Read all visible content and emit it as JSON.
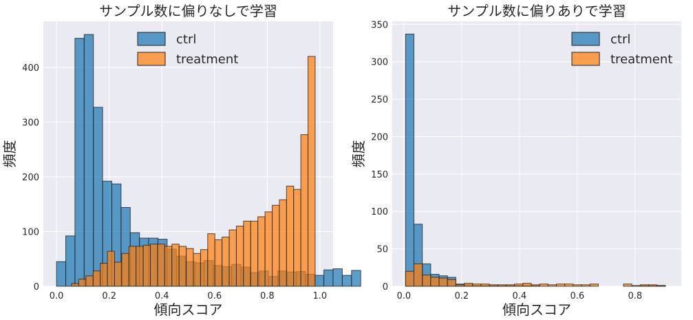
{
  "chart_data": [
    {
      "type": "histogram",
      "title": "サンプル数に偏りなしで学習",
      "xlabel": "傾向スコア",
      "ylabel": "頻度",
      "xlim": [
        -0.05,
        1.05
      ],
      "ylim": [
        0,
        484
      ],
      "xticks": [
        0.0,
        0.2,
        0.4,
        0.6,
        0.8,
        1.0
      ],
      "xtick_labels": [
        "0.0",
        "0.2",
        "0.4",
        "0.6",
        "0.8",
        "1.0"
      ],
      "yticks": [
        0,
        100,
        200,
        300,
        400
      ],
      "grid": true,
      "legend_position": "upper center",
      "series": [
        {
          "name": "ctrl",
          "color": "#1f77b4",
          "bin_start": 0.0,
          "bin_width": 0.035,
          "values": [
            45,
            92,
            453,
            460,
            327,
            192,
            187,
            144,
            98,
            88,
            88,
            86,
            68,
            55,
            45,
            43,
            47,
            38,
            36,
            40,
            35,
            25,
            28,
            18,
            28,
            26,
            27,
            22,
            20,
            30,
            32,
            20,
            29
          ]
        },
        {
          "name": "treatment",
          "color": "#ff7f0e",
          "bin_start": 0.0572,
          "bin_width": 0.0272,
          "values": [
            5,
            13,
            19,
            28,
            42,
            64,
            44,
            60,
            73,
            73,
            75,
            77,
            77,
            73,
            77,
            73,
            69,
            60,
            67,
            96,
            85,
            90,
            103,
            110,
            119,
            119,
            127,
            136,
            148,
            158,
            183,
            177,
            277,
            420
          ]
        }
      ]
    },
    {
      "type": "histogram",
      "title": "サンプル数に偏りありで学習",
      "xlabel": "傾向スコア",
      "ylabel": "頻度",
      "xlim": [
        -0.04,
        0.96
      ],
      "ylim": [
        0,
        354
      ],
      "xticks": [
        0.0,
        0.2,
        0.4,
        0.6,
        0.8
      ],
      "xtick_labels": [
        "0.0",
        "0.2",
        "0.4",
        "0.6",
        "0.8"
      ],
      "yticks": [
        0,
        50,
        100,
        150,
        200,
        250,
        300,
        350
      ],
      "grid": true,
      "legend_position": "upper right",
      "series": [
        {
          "name": "ctrl",
          "color": "#1f77b4",
          "bin_start": 0.006,
          "bin_width": 0.029,
          "values": [
            337,
            83,
            30,
            16,
            14,
            12,
            3,
            2,
            1,
            1,
            1,
            1,
            1,
            1,
            1,
            1,
            0,
            0,
            0,
            0,
            0,
            0,
            0,
            0,
            0,
            0,
            0,
            0,
            1,
            1,
            1
          ]
        },
        {
          "name": "treatment",
          "color": "#ff7f0e",
          "bin_start": 0.006,
          "bin_width": 0.029,
          "values": [
            20,
            30,
            15,
            12,
            11,
            9,
            2,
            4,
            3,
            3,
            2,
            2,
            2,
            3,
            4,
            2,
            3,
            2,
            3,
            3,
            2,
            2,
            3,
            0,
            0,
            0,
            3,
            1,
            2,
            2,
            1
          ]
        }
      ]
    }
  ]
}
